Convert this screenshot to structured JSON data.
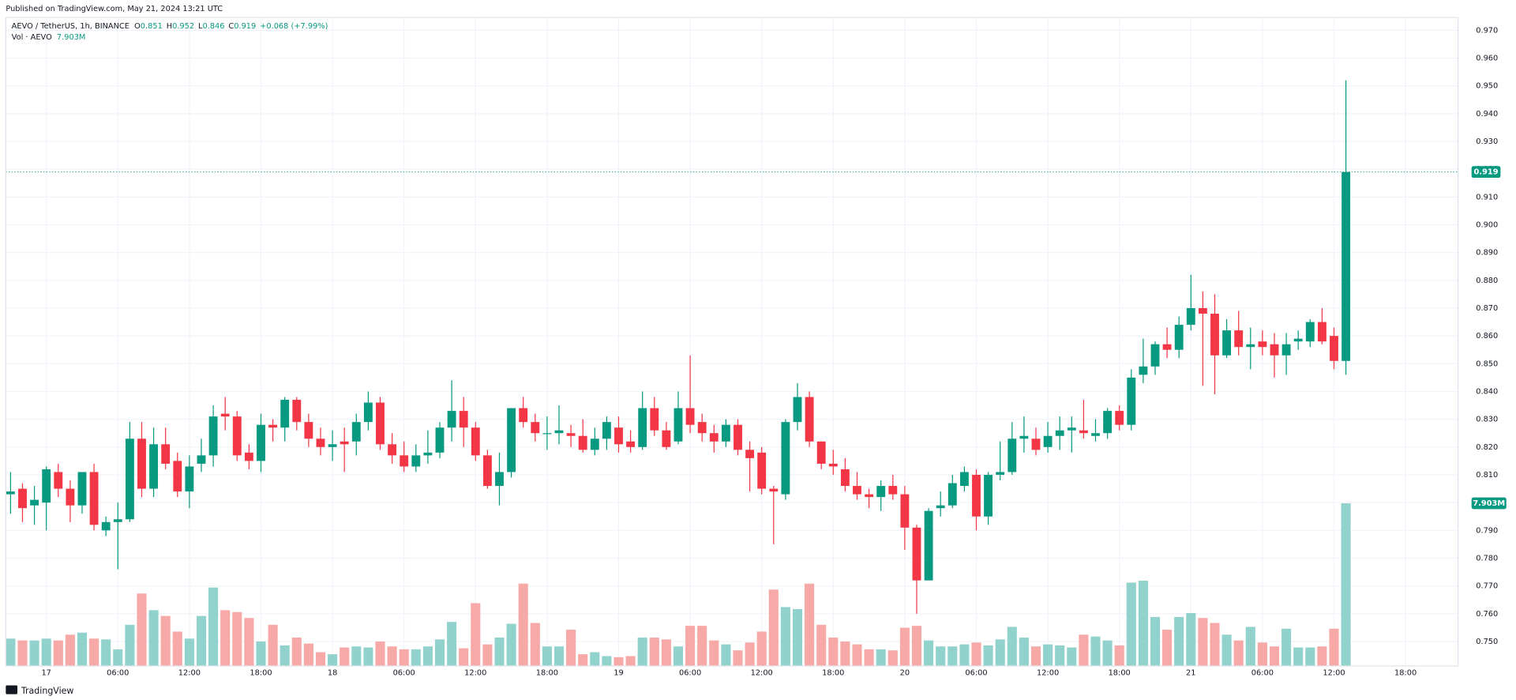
{
  "published": "Published on TradingView.com, May 21, 2024 13:21 UTC",
  "brand": "TradingView",
  "chart_data": {
    "type": "candlestick",
    "symbol": "AEVO / TetherUS, 1h, BINANCE",
    "keys": {
      "open": "O",
      "high": "H",
      "low": "L",
      "close": "C"
    },
    "change_label": "+0.068 (+7.99%)",
    "volume_title": "Vol · AEVO",
    "volume_last_label": "7.903M",
    "up_color": "#089981",
    "down_color": "#f23645",
    "up_volume_color": "#92d2cc",
    "down_volume_color": "#f7a9a7",
    "x": [
      0,
      1,
      2,
      3,
      4,
      5,
      6,
      7,
      8,
      9,
      10,
      11,
      12,
      13,
      14,
      15,
      16,
      17,
      18,
      19,
      20,
      21,
      22,
      23,
      24,
      25,
      26,
      27,
      28,
      29,
      30,
      31,
      32,
      33,
      34,
      35,
      36,
      37,
      38,
      39,
      40,
      41,
      42,
      43,
      44,
      45,
      46,
      47,
      48,
      49,
      50,
      51,
      52,
      53,
      54,
      55,
      56,
      57,
      58,
      59,
      60,
      61,
      62,
      63,
      64,
      65,
      66,
      67,
      68,
      69,
      70,
      71,
      72,
      73,
      74,
      75,
      76,
      77,
      78,
      79,
      80,
      81,
      82,
      83,
      84,
      85,
      86,
      87,
      88,
      89,
      90,
      91,
      92,
      93,
      94,
      95,
      96,
      97,
      98,
      99,
      100,
      101,
      102,
      103,
      104,
      105,
      106,
      107,
      108,
      109,
      110,
      111,
      112
    ],
    "open": [
      0.803,
      0.805,
      0.799,
      0.8,
      0.811,
      0.805,
      0.799,
      0.811,
      0.79,
      0.793,
      0.794,
      0.823,
      0.805,
      0.821,
      0.815,
      0.804,
      0.814,
      0.817,
      0.832,
      0.831,
      0.818,
      0.815,
      0.828,
      0.827,
      0.837,
      0.829,
      0.823,
      0.82,
      0.822,
      0.822,
      0.829,
      0.836,
      0.821,
      0.817,
      0.813,
      0.817,
      0.818,
      0.827,
      0.833,
      0.827,
      0.817,
      0.806,
      0.811,
      0.834,
      0.829,
      0.825,
      0.825,
      0.825,
      0.824,
      0.819,
      0.823,
      0.827,
      0.822,
      0.82,
      0.834,
      0.826,
      0.822,
      0.834,
      0.829,
      0.825,
      0.822,
      0.828,
      0.819,
      0.818,
      0.805,
      0.803,
      0.829,
      0.838,
      0.822,
      0.814,
      0.812,
      0.806,
      0.803,
      0.802,
      0.806,
      0.803,
      0.791,
      0.772,
      0.798,
      0.799,
      0.806,
      0.81,
      0.795,
      0.81,
      0.811,
      0.823,
      0.823,
      0.82,
      0.824,
      0.826,
      0.826,
      0.824,
      0.825,
      0.833,
      0.828,
      0.846,
      0.849,
      0.857,
      0.855,
      0.864,
      0.87,
      0.868,
      0.853,
      0.862,
      0.856,
      0.858,
      0.857,
      0.853,
      0.858,
      0.858,
      0.865,
      0.86,
      0.851
    ],
    "high": [
      0.811,
      0.807,
      0.806,
      0.813,
      0.814,
      0.808,
      0.811,
      0.814,
      0.795,
      0.8,
      0.829,
      0.829,
      0.827,
      0.827,
      0.818,
      0.817,
      0.823,
      0.835,
      0.838,
      0.833,
      0.821,
      0.832,
      0.83,
      0.838,
      0.838,
      0.832,
      0.827,
      0.826,
      0.827,
      0.832,
      0.84,
      0.838,
      0.825,
      0.822,
      0.821,
      0.826,
      0.829,
      0.844,
      0.838,
      0.829,
      0.819,
      0.818,
      0.834,
      0.838,
      0.832,
      0.831,
      0.835,
      0.828,
      0.83,
      0.827,
      0.831,
      0.831,
      0.826,
      0.84,
      0.838,
      0.829,
      0.84,
      0.853,
      0.832,
      0.828,
      0.83,
      0.83,
      0.822,
      0.82,
      0.806,
      0.83,
      0.843,
      0.84,
      0.822,
      0.819,
      0.816,
      0.811,
      0.805,
      0.808,
      0.81,
      0.806,
      0.792,
      0.798,
      0.804,
      0.81,
      0.813,
      0.812,
      0.811,
      0.822,
      0.829,
      0.831,
      0.827,
      0.829,
      0.831,
      0.831,
      0.837,
      0.83,
      0.834,
      0.835,
      0.848,
      0.859,
      0.858,
      0.863,
      0.867,
      0.882,
      0.876,
      0.875,
      0.866,
      0.869,
      0.863,
      0.862,
      0.861,
      0.861,
      0.862,
      0.866,
      0.87,
      0.863,
      0.952
    ],
    "low": [
      0.796,
      0.793,
      0.792,
      0.79,
      0.802,
      0.793,
      0.796,
      0.79,
      0.788,
      0.776,
      0.793,
      0.802,
      0.802,
      0.812,
      0.802,
      0.798,
      0.811,
      0.813,
      0.826,
      0.815,
      0.812,
      0.811,
      0.822,
      0.822,
      0.826,
      0.82,
      0.817,
      0.815,
      0.811,
      0.817,
      0.826,
      0.819,
      0.814,
      0.811,
      0.811,
      0.814,
      0.816,
      0.822,
      0.82,
      0.815,
      0.805,
      0.799,
      0.809,
      0.827,
      0.822,
      0.819,
      0.821,
      0.82,
      0.818,
      0.817,
      0.819,
      0.818,
      0.818,
      0.819,
      0.824,
      0.819,
      0.821,
      0.825,
      0.822,
      0.818,
      0.82,
      0.817,
      0.804,
      0.803,
      0.785,
      0.801,
      0.826,
      0.82,
      0.812,
      0.81,
      0.804,
      0.801,
      0.798,
      0.797,
      0.801,
      0.783,
      0.76,
      0.772,
      0.795,
      0.798,
      0.804,
      0.79,
      0.792,
      0.808,
      0.81,
      0.818,
      0.817,
      0.818,
      0.819,
      0.818,
      0.823,
      0.822,
      0.823,
      0.826,
      0.826,
      0.843,
      0.846,
      0.852,
      0.852,
      0.862,
      0.842,
      0.839,
      0.852,
      0.853,
      0.848,
      0.853,
      0.845,
      0.846,
      0.855,
      0.856,
      0.857,
      0.848,
      0.846
    ],
    "close": [
      0.804,
      0.798,
      0.801,
      0.812,
      0.805,
      0.799,
      0.811,
      0.792,
      0.793,
      0.794,
      0.823,
      0.805,
      0.821,
      0.814,
      0.804,
      0.813,
      0.817,
      0.831,
      0.831,
      0.817,
      0.815,
      0.828,
      0.827,
      0.837,
      0.829,
      0.823,
      0.82,
      0.821,
      0.821,
      0.829,
      0.836,
      0.821,
      0.817,
      0.813,
      0.817,
      0.818,
      0.827,
      0.833,
      0.827,
      0.817,
      0.806,
      0.811,
      0.834,
      0.829,
      0.825,
      0.825,
      0.826,
      0.824,
      0.819,
      0.823,
      0.829,
      0.821,
      0.82,
      0.834,
      0.826,
      0.82,
      0.834,
      0.828,
      0.825,
      0.822,
      0.828,
      0.819,
      0.816,
      0.805,
      0.804,
      0.829,
      0.838,
      0.822,
      0.814,
      0.813,
      0.806,
      0.803,
      0.802,
      0.806,
      0.803,
      0.791,
      0.772,
      0.797,
      0.799,
      0.807,
      0.811,
      0.795,
      0.81,
      0.811,
      0.823,
      0.824,
      0.819,
      0.824,
      0.826,
      0.827,
      0.825,
      0.825,
      0.833,
      0.828,
      0.845,
      0.849,
      0.857,
      0.855,
      0.864,
      0.87,
      0.868,
      0.853,
      0.862,
      0.856,
      0.857,
      0.856,
      0.853,
      0.857,
      0.859,
      0.865,
      0.858,
      0.851,
      0.919
    ],
    "volume": [
      1.33,
      1.24,
      1.24,
      1.33,
      1.24,
      1.52,
      1.62,
      1.33,
      1.29,
      0.81,
      2.0,
      3.52,
      2.71,
      2.43,
      1.67,
      1.33,
      2.43,
      3.81,
      2.71,
      2.62,
      2.33,
      1.19,
      2.0,
      1.0,
      1.38,
      1.09,
      0.67,
      0.57,
      0.9,
      0.95,
      0.9,
      1.19,
      0.95,
      0.81,
      0.81,
      0.95,
      1.29,
      2.14,
      0.86,
      3.05,
      1.05,
      1.38,
      2.05,
      4.0,
      2.09,
      0.95,
      0.95,
      1.76,
      0.57,
      0.67,
      0.48,
      0.43,
      0.48,
      1.38,
      1.38,
      1.29,
      0.95,
      1.95,
      1.95,
      1.24,
      1.05,
      0.76,
      1.14,
      1.67,
      3.71,
      2.86,
      2.76,
      4.0,
      2.0,
      1.38,
      1.19,
      1.05,
      0.81,
      0.81,
      0.76,
      1.86,
      1.95,
      1.24,
      0.95,
      0.95,
      1.05,
      1.14,
      1.0,
      1.29,
      1.9,
      1.38,
      0.95,
      1.05,
      1.0,
      0.9,
      1.52,
      1.43,
      1.24,
      1.0,
      4.05,
      4.14,
      2.38,
      1.76,
      2.38,
      2.57,
      2.33,
      2.09,
      1.52,
      1.24,
      1.9,
      1.14,
      0.95,
      1.81,
      0.9,
      0.9,
      0.95,
      1.81,
      7.903
    ],
    "volume_ylim": [
      0,
      31.5
    ],
    "xlim": [
      -0.4,
      121.4
    ],
    "xticks": [
      {
        "value": 3,
        "label": "17"
      },
      {
        "value": 9,
        "label": "06:00"
      },
      {
        "value": 15,
        "label": "12:00"
      },
      {
        "value": 21,
        "label": "18:00"
      },
      {
        "value": 27,
        "label": "18"
      },
      {
        "value": 33,
        "label": "06:00"
      },
      {
        "value": 39,
        "label": "12:00"
      },
      {
        "value": 45,
        "label": "18:00"
      },
      {
        "value": 51,
        "label": "19"
      },
      {
        "value": 57,
        "label": "06:00"
      },
      {
        "value": 63,
        "label": "12:00"
      },
      {
        "value": 69,
        "label": "18:00"
      },
      {
        "value": 75,
        "label": "20"
      },
      {
        "value": 81,
        "label": "06:00"
      },
      {
        "value": 87,
        "label": "12:00"
      },
      {
        "value": 93,
        "label": "18:00"
      },
      {
        "value": 99,
        "label": "21"
      },
      {
        "value": 105,
        "label": "06:00"
      },
      {
        "value": 111,
        "label": "12:00"
      },
      {
        "value": 117,
        "label": "18:00"
      }
    ],
    "ylim": [
      0.7412,
      0.9746
    ],
    "yticks": [
      {
        "value": 0.75,
        "label": "0.750"
      },
      {
        "value": 0.76,
        "label": "0.760"
      },
      {
        "value": 0.77,
        "label": "0.770"
      },
      {
        "value": 0.78,
        "label": "0.780"
      },
      {
        "value": 0.79,
        "label": "0.790"
      },
      {
        "value": 0.8,
        "label": "0.800"
      },
      {
        "value": 0.81,
        "label": "0.810"
      },
      {
        "value": 0.82,
        "label": "0.820"
      },
      {
        "value": 0.83,
        "label": "0.830"
      },
      {
        "value": 0.84,
        "label": "0.840"
      },
      {
        "value": 0.85,
        "label": "0.850"
      },
      {
        "value": 0.86,
        "label": "0.860"
      },
      {
        "value": 0.87,
        "label": "0.870"
      },
      {
        "value": 0.88,
        "label": "0.880"
      },
      {
        "value": 0.89,
        "label": "0.890"
      },
      {
        "value": 0.9,
        "label": "0.900"
      },
      {
        "value": 0.91,
        "label": "0.910"
      },
      {
        "value": 0.92,
        "label": "0.920"
      },
      {
        "value": 0.93,
        "label": "0.930"
      },
      {
        "value": 0.94,
        "label": "0.940"
      },
      {
        "value": 0.95,
        "label": "0.950"
      },
      {
        "value": 0.96,
        "label": "0.960"
      },
      {
        "value": 0.97,
        "label": "0.970"
      }
    ],
    "grid": true
  }
}
